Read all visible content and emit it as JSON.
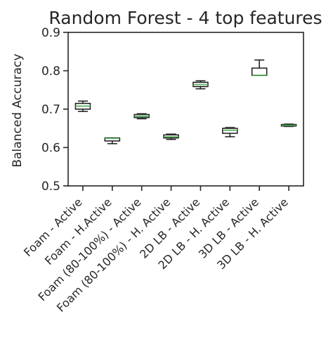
{
  "chart_data": {
    "type": "box",
    "title": "Random Forest - 4 top features",
    "xlabel": "",
    "ylabel": "Balanced Accuracy",
    "ylim": [
      0.5,
      0.9
    ],
    "yticks": [
      "0.5",
      "0.6",
      "0.7",
      "0.8",
      "0.9"
    ],
    "grid": false,
    "median_color": "#4caf50",
    "box_color": "#262626",
    "categories": [
      "Foam - Active",
      "Foam - H.Active",
      "Foam (80-100%) - Active",
      "Foam (80-100%) - H. Active",
      "2D LB - Active",
      "2D LB - H. Active",
      "3D LB - Active",
      "3D LB - H. Active"
    ],
    "boxes": [
      {
        "whislo": 0.694,
        "q1": 0.7,
        "med": 0.708,
        "q3": 0.715,
        "whishi": 0.721
      },
      {
        "whislo": 0.61,
        "q1": 0.617,
        "med": 0.624,
        "q3": 0.625,
        "whishi": 0.625
      },
      {
        "whislo": 0.675,
        "q1": 0.678,
        "med": 0.681,
        "q3": 0.686,
        "whishi": 0.688
      },
      {
        "whislo": 0.621,
        "q1": 0.625,
        "med": 0.628,
        "q3": 0.633,
        "whishi": 0.635
      },
      {
        "whislo": 0.753,
        "q1": 0.759,
        "med": 0.764,
        "q3": 0.77,
        "whishi": 0.774
      },
      {
        "whislo": 0.628,
        "q1": 0.637,
        "med": 0.645,
        "q3": 0.65,
        "whishi": 0.652
      },
      {
        "whislo": 0.788,
        "q1": 0.788,
        "med": 0.788,
        "q3": 0.807,
        "whishi": 0.828
      },
      {
        "whislo": 0.655,
        "q1": 0.656,
        "med": 0.658,
        "q3": 0.66,
        "whishi": 0.661
      }
    ]
  }
}
